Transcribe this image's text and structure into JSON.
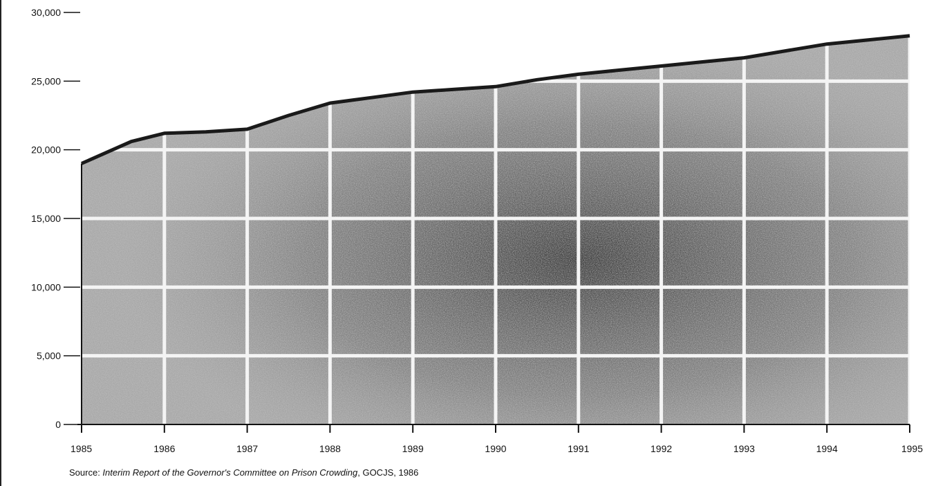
{
  "chart_data": {
    "type": "area",
    "title": "",
    "xlabel": "",
    "ylabel": "",
    "ylim": [
      0,
      30000
    ],
    "xlim": [
      1985,
      1995
    ],
    "x_ticks": [
      "1985",
      "1986",
      "1987",
      "1988",
      "1989",
      "1990",
      "1991",
      "1992",
      "1993",
      "1994",
      "1995"
    ],
    "y_ticks": [
      "0",
      "5,000",
      "10,000",
      "15,000",
      "20,000",
      "25,000",
      "30,000"
    ],
    "y_tick_values": [
      0,
      5000,
      10000,
      15000,
      20000,
      25000,
      30000
    ],
    "grid": true,
    "series": [
      {
        "x": [
          1985,
          1985.6,
          1986,
          1986.5,
          1987,
          1987.5,
          1988,
          1988.5,
          1989,
          1989.5,
          1990,
          1990.5,
          1991,
          1991.5,
          1992,
          1992.5,
          1993,
          1993.5,
          1994,
          1994.5,
          1995
        ],
        "values": [
          19000,
          20600,
          21200,
          21300,
          21500,
          22500,
          23400,
          23800,
          24200,
          24400,
          24600,
          25100,
          25500,
          25800,
          26100,
          26400,
          26700,
          27200,
          27700,
          28000,
          28300
        ]
      }
    ],
    "colors": {
      "fill": "#9a9a9a",
      "line": "#1a1a1a",
      "grid": "#f4f4f4",
      "axis": "#111111"
    }
  },
  "source": {
    "prefix": "Source: ",
    "title": "Interim Report of the Governor's Committee on Prison Crowding",
    "suffix": ", GOCJS, 1986"
  }
}
